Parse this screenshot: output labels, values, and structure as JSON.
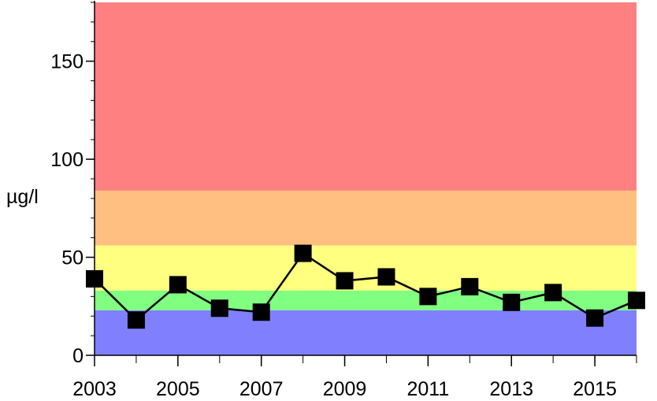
{
  "chart_data": {
    "type": "line",
    "ylabel": "µg/l",
    "xlim": [
      2003,
      2016
    ],
    "ylim": [
      0,
      180
    ],
    "x_ticks": [
      "2003",
      "2005",
      "2007",
      "2009",
      "2011",
      "2013",
      "2015"
    ],
    "y_ticks": [
      "0",
      "50",
      "100",
      "150"
    ],
    "x_minor_step": 1,
    "y_minor_step": 10,
    "bands": [
      {
        "from": 0,
        "to": 23,
        "color": "#8080ff"
      },
      {
        "from": 23,
        "to": 33,
        "color": "#80ff80"
      },
      {
        "from": 33,
        "to": 56,
        "color": "#ffff80"
      },
      {
        "from": 56,
        "to": 84,
        "color": "#ffbf80"
      },
      {
        "from": 84,
        "to": 180,
        "color": "#ff8080"
      }
    ],
    "series": [
      {
        "x": [
          2003,
          2004,
          2005,
          2006,
          2007,
          2008,
          2009,
          2010,
          2011,
          2012,
          2013,
          2014,
          2015,
          2016
        ],
        "values": [
          39,
          18,
          36,
          24,
          22,
          52,
          38,
          40,
          30,
          35,
          27,
          32,
          19,
          28
        ],
        "marker": "square",
        "color": "#000000"
      }
    ],
    "grid": false,
    "legend": "none"
  }
}
